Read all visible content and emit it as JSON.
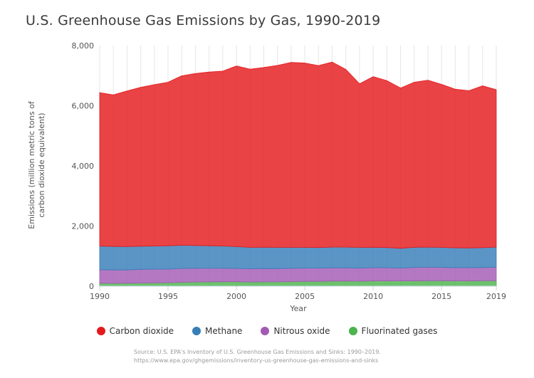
{
  "chart_data": {
    "type": "area",
    "stacked": true,
    "title": "U.S. Greenhouse Gas Emissions by Gas, 1990-2019",
    "xlabel": "Year",
    "ylabel_line1": "Emissions (million metric tons of",
    "ylabel_line2": "carbon dioxide equivalent)",
    "xlim": [
      1990,
      2019
    ],
    "ylim": [
      0,
      8000
    ],
    "x_ticks": [
      1990,
      1995,
      2000,
      2005,
      2010,
      2015,
      2019
    ],
    "y_ticks": [
      0,
      2000,
      4000,
      6000,
      8000
    ],
    "y_tick_labels": [
      "0",
      "2,000",
      "4,000",
      "6,000",
      "8,000"
    ],
    "grid": "vertical",
    "legend_position": "bottom",
    "x": [
      1990,
      1991,
      1992,
      1993,
      1994,
      1995,
      1996,
      1997,
      1998,
      1999,
      2000,
      2001,
      2002,
      2003,
      2004,
      2005,
      2006,
      2007,
      2008,
      2009,
      2010,
      2011,
      2012,
      2013,
      2014,
      2015,
      2016,
      2017,
      2018,
      2019
    ],
    "series": [
      {
        "name": "Fluorinated gases",
        "color": "#4db34d",
        "values": [
          100,
          95,
          100,
          105,
          110,
          115,
          130,
          140,
          145,
          150,
          150,
          140,
          145,
          145,
          155,
          160,
          160,
          170,
          170,
          165,
          175,
          175,
          175,
          175,
          180,
          180,
          175,
          175,
          180,
          180
        ]
      },
      {
        "name": "Nitrous oxide",
        "color": "#a35ab5",
        "values": [
          450,
          445,
          440,
          455,
          455,
          450,
          460,
          455,
          450,
          445,
          440,
          440,
          440,
          440,
          440,
          440,
          440,
          440,
          440,
          435,
          440,
          440,
          425,
          450,
          450,
          445,
          440,
          440,
          440,
          450
        ]
      },
      {
        "name": "Methane",
        "color": "#377eb8",
        "values": [
          785,
          780,
          775,
          770,
          770,
          780,
          770,
          760,
          750,
          740,
          725,
          710,
          710,
          705,
          695,
          690,
          685,
          690,
          690,
          690,
          680,
          670,
          660,
          670,
          670,
          665,
          660,
          655,
          660,
          670
        ]
      },
      {
        "name": "Carbon dioxide",
        "color": "#e41a1c",
        "values": [
          5100,
          5040,
          5175,
          5280,
          5365,
          5435,
          5635,
          5715,
          5775,
          5815,
          6005,
          5925,
          5975,
          6050,
          6150,
          6130,
          6050,
          6150,
          5910,
          5440,
          5670,
          5550,
          5330,
          5485,
          5550,
          5420,
          5275,
          5230,
          5380,
          5235
        ]
      }
    ],
    "legend_order": [
      "Carbon dioxide",
      "Methane",
      "Nitrous oxide",
      "Fluorinated gases"
    ],
    "source_line1": "Source: U.S. EPA's Inventory of U.S. Greenhouse Gas Emissions and Sinks: 1990–2019.",
    "source_line2": "https://www.epa.gov/ghgemissions/inventory-us-greenhouse-gas-emissions-and-sinks"
  }
}
